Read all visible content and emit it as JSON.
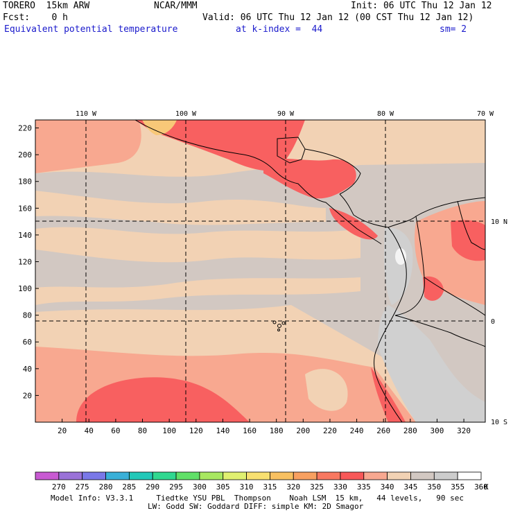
{
  "header": {
    "model": "TORERO  15km ARW",
    "org": "NCAR/MMM",
    "init": "Init: 06 UTC Thu 12 Jan 12",
    "fcst": "Fcst:    0 h",
    "valid": "Valid: 06 UTC Thu 12 Jan 12 (00 CST Thu 12 Jan 12)",
    "field": "Equivalent potential temperature",
    "kindex": "at k-index =  44",
    "smooth": "sm= 2"
  },
  "map": {
    "lon_labels": [
      "110 W",
      "100 W",
      "90 W",
      "80 W",
      "70 W"
    ],
    "lat_labels": [
      "10 N",
      "0",
      "10 S"
    ],
    "y_ticks": [
      "20",
      "40",
      "60",
      "80",
      "100",
      "120",
      "140",
      "160",
      "180",
      "200",
      "220"
    ],
    "x_ticks": [
      "20",
      "40",
      "60",
      "80",
      "100",
      "120",
      "140",
      "160",
      "180",
      "200",
      "220",
      "240",
      "260",
      "280",
      "300",
      "320"
    ]
  },
  "colorbar": {
    "labels": [
      "270",
      "275",
      "280",
      "285",
      "290",
      "295",
      "300",
      "305",
      "310",
      "315",
      "320",
      "325",
      "330",
      "335",
      "340",
      "345",
      "350",
      "355",
      "360"
    ],
    "unit": "K",
    "colors": [
      "#c85ad2",
      "#9a72d8",
      "#7a78e8",
      "#3ab0d8",
      "#22c8b8",
      "#30d890",
      "#60e068",
      "#a8e860",
      "#e0f070",
      "#f8e070",
      "#f8c060",
      "#f8a060",
      "#f87860",
      "#f85858",
      "#f8a890",
      "#f2d2b4",
      "#d2c8c2",
      "#cccccc",
      "#ffffff"
    ]
  },
  "footer": {
    "line1": "Model Info: V3.3.1     Tiedtke YSU PBL  Thompson    Noah LSM  15 km,   44 levels,   90 sec",
    "line2": "LW: Godd SW: Goddard DIFF: simple KM: 2D Smagor"
  }
}
